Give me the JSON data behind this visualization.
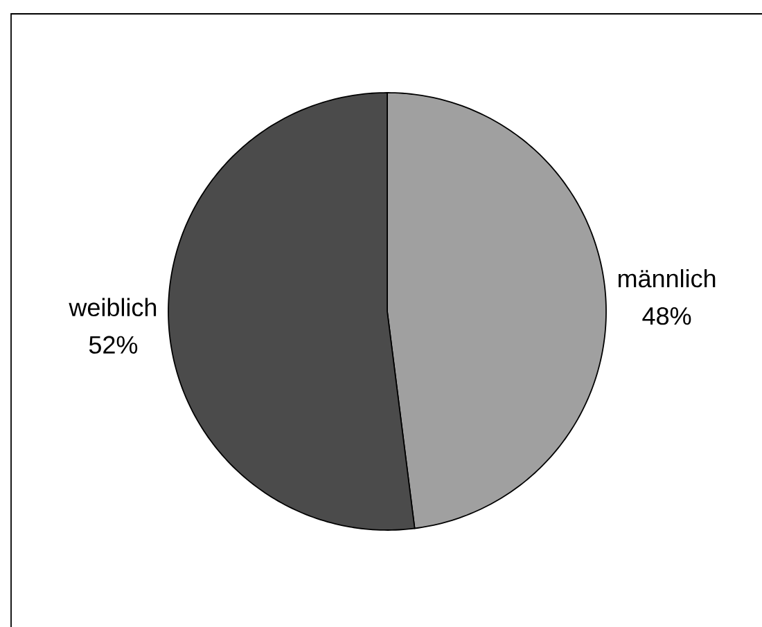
{
  "chart_data": {
    "type": "pie",
    "categories": [
      "männlich",
      "weiblich"
    ],
    "values": [
      48,
      52
    ],
    "colors": [
      "#a0a0a0",
      "#4b4b4b"
    ],
    "value_labels": [
      "48%",
      "52%"
    ]
  }
}
